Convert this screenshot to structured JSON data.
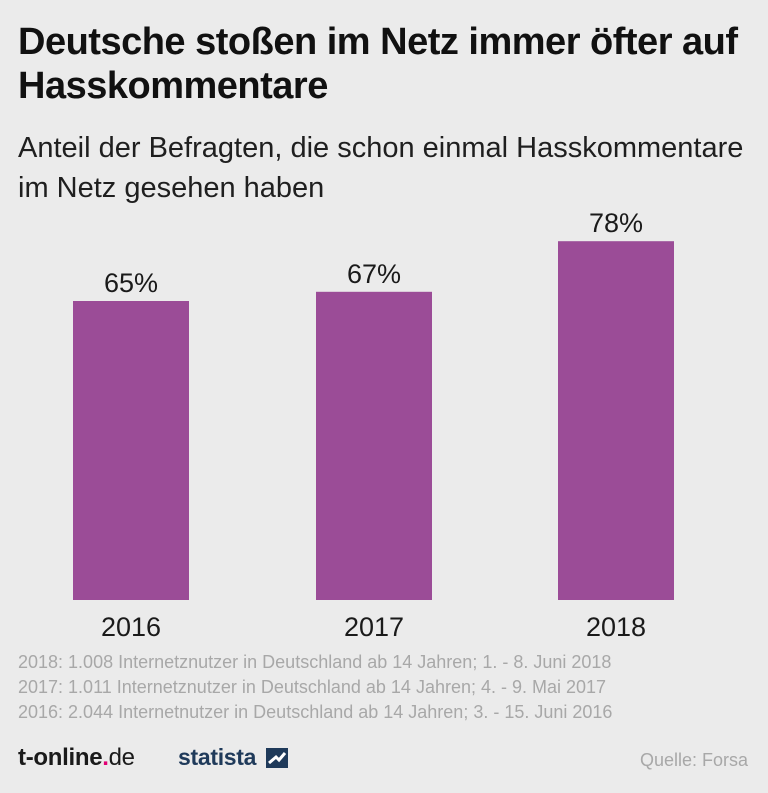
{
  "title": "Deutsche stoßen im Netz immer öfter auf Hasskommentare",
  "subtitle": "Anteil der Befragten, die schon einmal Hasskommentare im Netz gesehen haben",
  "chart_data": {
    "type": "bar",
    "categories": [
      "2016",
      "2017",
      "2018"
    ],
    "values": [
      65,
      67,
      78
    ],
    "value_labels": [
      "65%",
      "67%",
      "78%"
    ],
    "unit": "%",
    "bar_color": "#9b4c97",
    "ylim": [
      0,
      100
    ],
    "grid": false
  },
  "notes": [
    "2018: 1.008 Internetznutzer in Deutschland ab 14 Jahren; 1. - 8. Juni 2018",
    "2017: 1.011 Internetznutzer in Deutschland ab 14 Jahren; 4. - 9. Mai 2017",
    "2016: 2.044 Internetnutzer in Deutschland ab 14 Jahren; 3. - 15. Juni 2016"
  ],
  "footer": {
    "tonline_name": "t-online",
    "tonline_dot": ".",
    "tonline_tld": "de",
    "statista": "statista",
    "source": "Quelle: Forsa",
    "tonline_accent": "#e20074",
    "statista_color": "#1f3a5a"
  }
}
